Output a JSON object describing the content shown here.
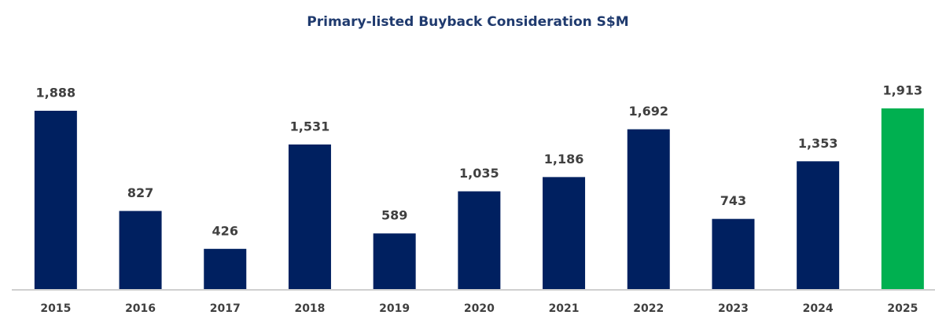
{
  "chart_data": {
    "type": "bar",
    "title": "Primary-listed Buyback Consideration S$M",
    "categories": [
      "2015",
      "2016",
      "2017",
      "2018",
      "2019",
      "2020",
      "2021",
      "2022",
      "2023",
      "2024",
      "2025"
    ],
    "values": [
      1888,
      827,
      426,
      1531,
      589,
      1035,
      1186,
      1692,
      743,
      1353,
      1913
    ],
    "value_labels": [
      "1,888",
      "827",
      "426",
      "1,531",
      "589",
      "1,035",
      "1,186",
      "1,692",
      "743",
      "1,353",
      "1,913"
    ],
    "colors": [
      "#002060",
      "#002060",
      "#002060",
      "#002060",
      "#002060",
      "#002060",
      "#002060",
      "#002060",
      "#002060",
      "#002060",
      "#00b050"
    ]
  }
}
